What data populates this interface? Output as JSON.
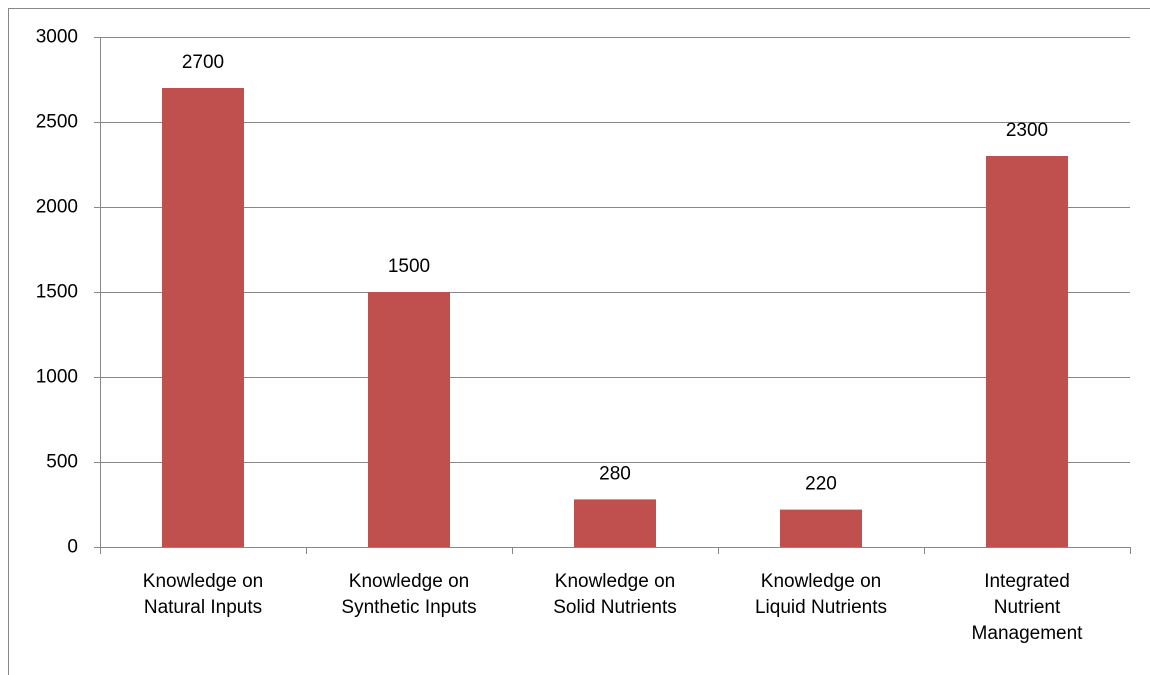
{
  "chart_data": {
    "type": "bar",
    "categories": [
      "Knowledge on Natural Inputs",
      "Knowledge on Synthetic Inputs",
      "Knowledge on Solid Nutrients",
      "Knowledge on Liquid Nutrients",
      "Integrated Nutrient Management"
    ],
    "values": [
      2700,
      1500,
      280,
      220,
      2300
    ],
    "color": "#c0504d",
    "ylim": [
      0,
      3000
    ],
    "yticks": [
      0,
      500,
      1000,
      1500,
      2000,
      2500,
      3000
    ],
    "grid": true
  }
}
